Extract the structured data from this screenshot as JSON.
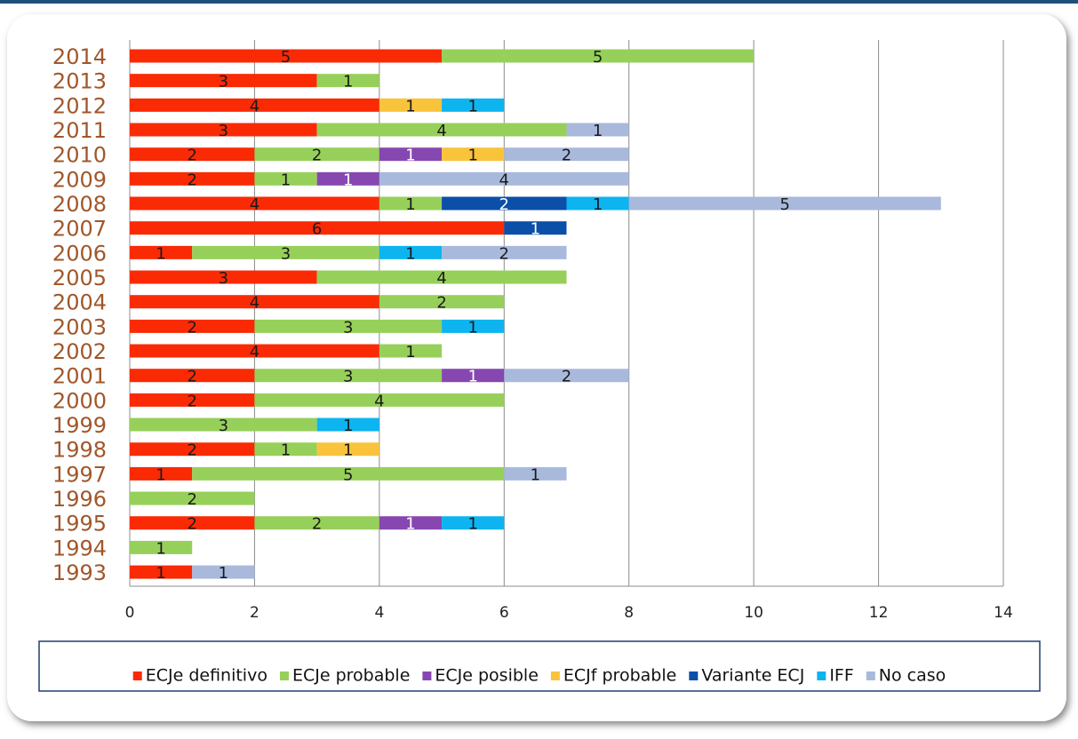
{
  "chart_data": {
    "type": "stacked-barh",
    "categories": [
      "2014",
      "2013",
      "2012",
      "2011",
      "2010",
      "2009",
      "2008",
      "2007",
      "2006",
      "2005",
      "2004",
      "2003",
      "2002",
      "2001",
      "2000",
      "1999",
      "1998",
      "1997",
      "1996",
      "1995",
      "1994",
      "1993"
    ],
    "series": [
      {
        "name": "ECJe definitivo",
        "color": "#fa2a05",
        "label_color": "#1a1a1a",
        "values": [
          5,
          3,
          4,
          3,
          2,
          2,
          4,
          6,
          1,
          3,
          4,
          2,
          4,
          2,
          2,
          null,
          2,
          1,
          null,
          2,
          null,
          1
        ]
      },
      {
        "name": "ECJe probable",
        "color": "#96d05a",
        "label_color": "#1a1a1a",
        "values": [
          5,
          1,
          null,
          4,
          2,
          1,
          1,
          null,
          3,
          4,
          2,
          3,
          1,
          3,
          4,
          3,
          1,
          5,
          2,
          2,
          1,
          null
        ]
      },
      {
        "name": "ECJe posible",
        "color": "#8747b0",
        "label_color": "#ffffff",
        "values": [
          null,
          null,
          null,
          null,
          1,
          1,
          null,
          null,
          null,
          null,
          null,
          null,
          null,
          1,
          null,
          null,
          null,
          null,
          null,
          1,
          null,
          null
        ]
      },
      {
        "name": "ECJf probable",
        "color": "#f9c33c",
        "label_color": "#1a1a1a",
        "values": [
          null,
          null,
          1,
          null,
          1,
          null,
          null,
          null,
          null,
          null,
          null,
          null,
          null,
          null,
          null,
          null,
          1,
          null,
          null,
          null,
          null,
          null
        ]
      },
      {
        "name": "Variante ECJ",
        "color": "#0b4fa8",
        "label_color": "#ffffff",
        "values": [
          null,
          null,
          null,
          null,
          null,
          null,
          2,
          1,
          null,
          null,
          null,
          null,
          null,
          null,
          null,
          null,
          null,
          null,
          null,
          null,
          null,
          null
        ]
      },
      {
        "name": "IFF",
        "color": "#0db4f0",
        "label_color": "#1a1a1a",
        "values": [
          null,
          null,
          1,
          null,
          null,
          null,
          1,
          null,
          1,
          null,
          null,
          1,
          null,
          null,
          null,
          1,
          null,
          null,
          null,
          1,
          null,
          null
        ]
      },
      {
        "name": "No caso",
        "color": "#a8b9dc",
        "label_color": "#1a1a1a",
        "values": [
          null,
          null,
          null,
          1,
          2,
          4,
          5,
          null,
          2,
          null,
          null,
          null,
          null,
          2,
          null,
          null,
          null,
          1,
          null,
          null,
          null,
          1
        ]
      }
    ],
    "xlim": [
      0,
      14
    ],
    "xticks": [
      0,
      2,
      4,
      6,
      8,
      10,
      12,
      14
    ],
    "grid": true
  }
}
